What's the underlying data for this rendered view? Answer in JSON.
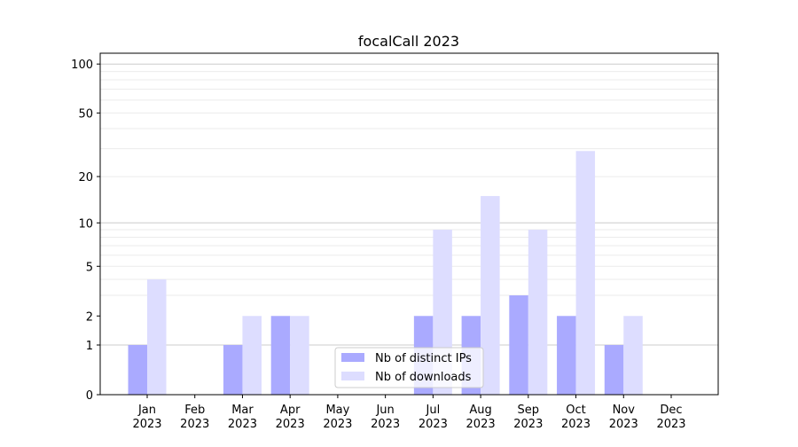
{
  "chart_data": {
    "type": "bar",
    "title": "focalCall 2023",
    "xlabel": "",
    "ylabel": "",
    "yscale": "log10(1+y)",
    "ylim": [
      0,
      116
    ],
    "yticks": [
      0,
      1,
      2,
      5,
      10,
      20,
      50,
      100
    ],
    "ytick_labels": [
      "0",
      "1",
      "2",
      "5",
      "10",
      "20",
      "50",
      "100"
    ],
    "minor_grid": [
      3,
      4,
      5,
      6,
      7,
      8,
      9,
      20,
      30,
      40,
      50,
      60,
      70,
      80,
      90
    ],
    "major_grid": [
      1,
      10,
      100
    ],
    "categories": [
      "Jan\n2023",
      "Feb\n2023",
      "Mar\n2023",
      "Apr\n2023",
      "May\n2023",
      "Jun\n2023",
      "Jul\n2023",
      "Aug\n2023",
      "Sep\n2023",
      "Oct\n2023",
      "Nov\n2023",
      "Dec\n2023"
    ],
    "category_months": [
      "Jan",
      "Feb",
      "Mar",
      "Apr",
      "May",
      "Jun",
      "Jul",
      "Aug",
      "Sep",
      "Oct",
      "Nov",
      "Dec"
    ],
    "category_year": "2023",
    "series": [
      {
        "name": "Nb of distinct IPs",
        "color": "#aaaaff",
        "values": [
          1,
          0,
          1,
          2,
          0,
          0,
          2,
          2,
          3,
          2,
          1,
          0
        ]
      },
      {
        "name": "Nb of downloads",
        "color": "#ddddff",
        "values": [
          4,
          0,
          2,
          2,
          0,
          0,
          9,
          15,
          9,
          29,
          2,
          0
        ]
      }
    ],
    "legend": "bottom-center",
    "grid": true
  }
}
